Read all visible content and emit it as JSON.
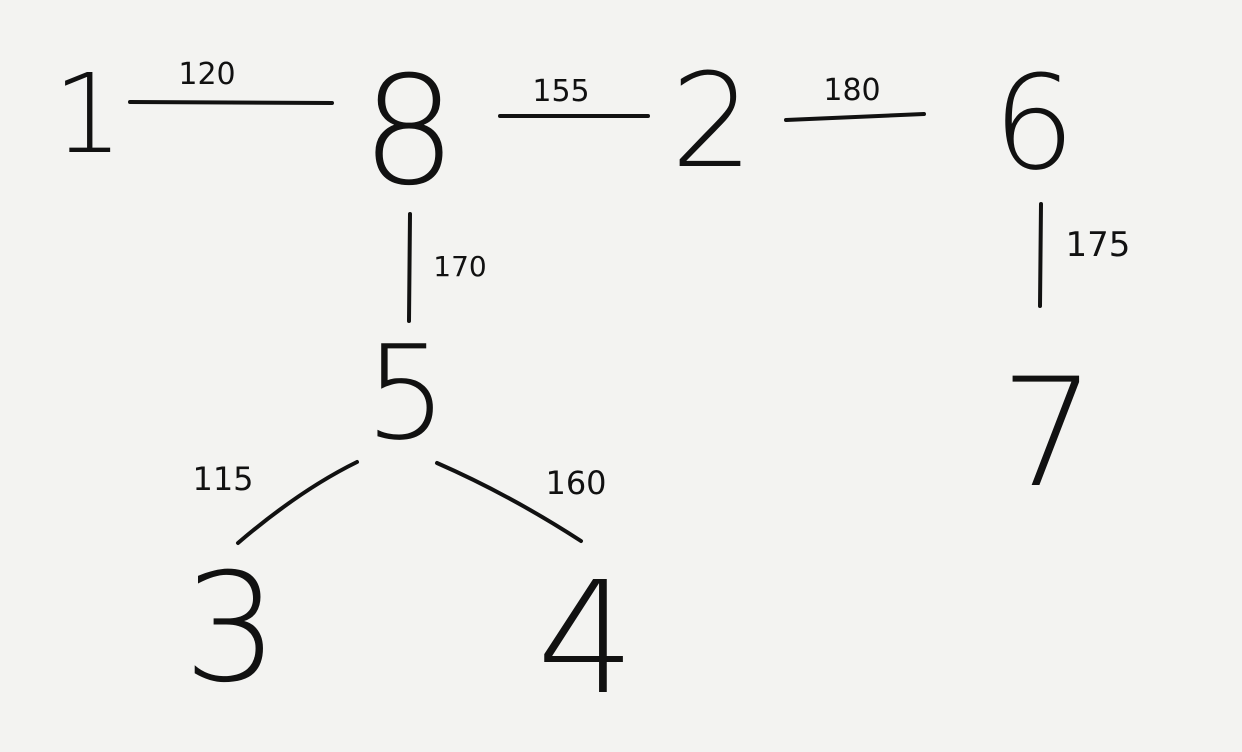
{
  "diagram": {
    "nodes": [
      {
        "id": "1",
        "label": "1"
      },
      {
        "id": "8",
        "label": "8"
      },
      {
        "id": "2",
        "label": "2"
      },
      {
        "id": "6",
        "label": "6"
      },
      {
        "id": "5",
        "label": "5"
      },
      {
        "id": "7",
        "label": "7"
      },
      {
        "id": "3",
        "label": "3"
      },
      {
        "id": "4",
        "label": "4"
      }
    ],
    "edges": [
      {
        "from": "1",
        "to": "8",
        "weight": "120"
      },
      {
        "from": "8",
        "to": "2",
        "weight": "155"
      },
      {
        "from": "2",
        "to": "6",
        "weight": "180"
      },
      {
        "from": "8",
        "to": "5",
        "weight": "170"
      },
      {
        "from": "6",
        "to": "7",
        "weight": "175"
      },
      {
        "from": "5",
        "to": "3",
        "weight": "115"
      },
      {
        "from": "5",
        "to": "4",
        "weight": "160"
      }
    ]
  }
}
